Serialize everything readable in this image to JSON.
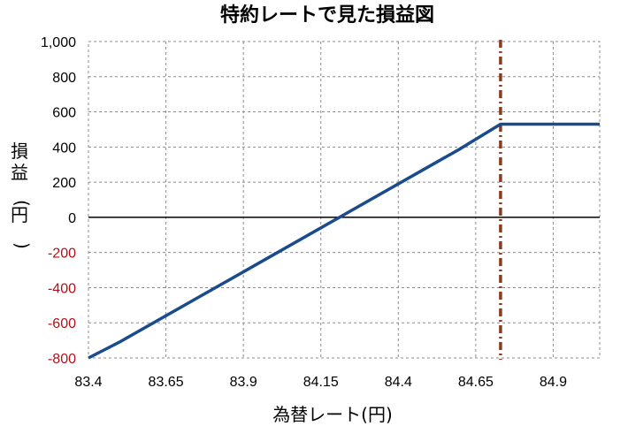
{
  "chart_data": {
    "type": "line",
    "title": "特約レートで見た損益図",
    "xlabel": "為替レート(円)",
    "ylabel": "損益(円)",
    "xlim": [
      83.4,
      85.05
    ],
    "ylim": [
      -800,
      1000
    ],
    "x_ticks": [
      "83.4",
      "83.65",
      "83.9",
      "84.15",
      "84.4",
      "84.65",
      "84.9"
    ],
    "y_ticks": [
      "1,000",
      "800",
      "600",
      "400",
      "200",
      "0",
      "-200",
      "-400",
      "-600",
      "-800"
    ],
    "grid": true,
    "series": [
      {
        "color": "#1a4b8c",
        "x": [
          83.4,
          83.5,
          83.75,
          84.0,
          84.25,
          84.5,
          84.6,
          84.73,
          85.05
        ],
        "y": [
          -800,
          -710,
          -460,
          -210,
          40,
          290,
          390,
          530,
          530
        ]
      }
    ],
    "reference_line": {
      "x": 84.73,
      "color": "#8b3a1f",
      "style": "dash-dot"
    },
    "colors": {
      "negative_tick": "#b0121b",
      "grid": "#8c8c8c"
    }
  }
}
